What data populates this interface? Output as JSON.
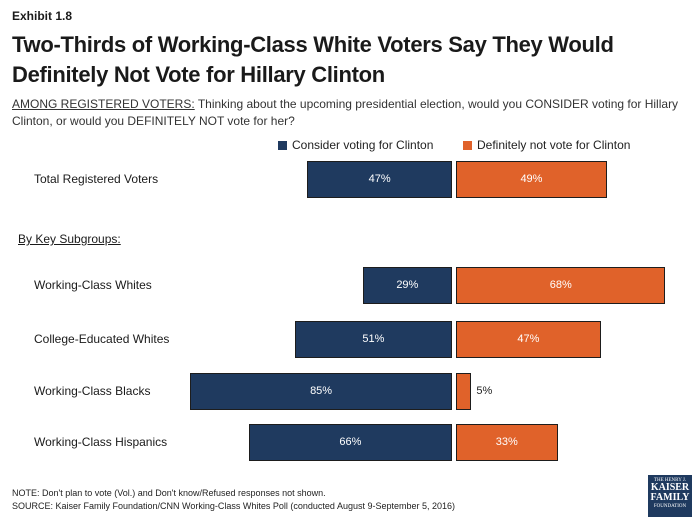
{
  "exhibit": "Exhibit 1.8",
  "title": "Two-Thirds of Working-Class White Voters Say They Would Definitely Not Vote for Hillary Clinton",
  "question": {
    "prefix": "AMONG REGISTERED VOTERS:",
    "text": " Thinking about the upcoming presidential election, would you CONSIDER voting for Hillary Clinton, or would you DEFINITELY NOT vote for her?"
  },
  "subgroups_label": "By Key Subgroups:",
  "colors": {
    "consider": "#1f3a5f",
    "notvote": "#e0622a"
  },
  "chart_data": {
    "type": "bar",
    "orientation": "horizontal-diverging",
    "legend": {
      "placement": "top-right",
      "entries": [
        "Consider voting for Clinton",
        "Definitely not vote for Clinton"
      ]
    },
    "categories": [
      "Total Registered Voters",
      "Working-Class Whites",
      "College-Educated Whites",
      "Working-Class Blacks",
      "Working-Class Hispanics"
    ],
    "series": [
      {
        "name": "Consider voting for Clinton",
        "values": [
          47,
          29,
          51,
          85,
          66
        ],
        "labels": [
          "47%",
          "29%",
          "51%",
          "85%",
          "66%"
        ]
      },
      {
        "name": "Definitely not vote for Clinton",
        "values": [
          49,
          68,
          47,
          5,
          33
        ],
        "labels": [
          "49%",
          "68%",
          "47%",
          "5%",
          "33%"
        ]
      }
    ],
    "xlim": [
      0,
      100
    ],
    "grid": false
  },
  "notes": {
    "note": "NOTE: Don't plan to vote (Vol.) and Don't know/Refused responses not shown.",
    "source": "SOURCE: Kaiser Family Foundation/CNN Working-Class Whites Poll (conducted August 9-September 5, 2016)"
  },
  "logo": {
    "line1": "THE HENRY J.",
    "line2": "KAISER",
    "line3": "FAMILY",
    "line4": "FOUNDATION"
  }
}
